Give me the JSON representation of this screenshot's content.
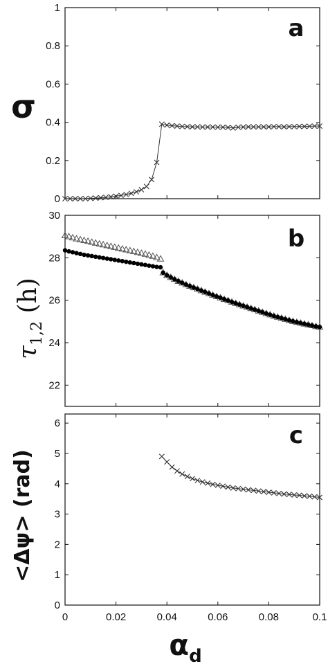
{
  "figure": {
    "xlabel_main": "α",
    "xlabel_sub": "d",
    "xticks": [
      "0",
      "0.02",
      "0.04",
      "0.06",
      "0.08",
      "0.1"
    ]
  },
  "panel_a": {
    "letter": "a",
    "ylabel": "σ",
    "yticks": [
      "0",
      "0.2",
      "0.4",
      "0.6",
      "0.8",
      "1"
    ]
  },
  "panel_b": {
    "letter": "b",
    "ylabel_main": "τ",
    "ylabel_sub": "1,2",
    "ylabel_unit": " (h)",
    "yticks": [
      "22",
      "24",
      "26",
      "28",
      "30"
    ]
  },
  "panel_c": {
    "letter": "c",
    "ylabel": "<Δψ> (rad)",
    "yticks": [
      "0",
      "1",
      "2",
      "3",
      "4",
      "5",
      "6"
    ]
  },
  "chart_data": [
    {
      "type": "line",
      "panel": "a",
      "xlim": [
        0,
        0.1
      ],
      "ylim": [
        0,
        1
      ],
      "series": [
        {
          "marker": "x",
          "x": [
            0,
            0.002,
            0.004,
            0.006,
            0.008,
            0.01,
            0.012,
            0.014,
            0.016,
            0.018,
            0.02,
            0.022,
            0.024,
            0.026,
            0.028,
            0.03,
            0.032,
            0.034,
            0.036,
            0.038,
            0.04,
            0.042,
            0.044,
            0.046,
            0.048,
            0.05,
            0.052,
            0.054,
            0.056,
            0.058,
            0.06,
            0.062,
            0.064,
            0.066,
            0.068,
            0.07,
            0.072,
            0.074,
            0.076,
            0.078,
            0.08,
            0.082,
            0.084,
            0.086,
            0.088,
            0.09,
            0.092,
            0.094,
            0.096,
            0.098,
            0.1
          ],
          "y": [
            0.0,
            0.0,
            0.0,
            0.0,
            0.0,
            0.002,
            0.003,
            0.005,
            0.007,
            0.01,
            0.013,
            0.017,
            0.022,
            0.028,
            0.036,
            0.047,
            0.064,
            0.1,
            0.19,
            0.39,
            0.385,
            0.382,
            0.38,
            0.378,
            0.377,
            0.376,
            0.376,
            0.375,
            0.375,
            0.375,
            0.374,
            0.374,
            0.373,
            0.37,
            0.374,
            0.375,
            0.376,
            0.376,
            0.376,
            0.376,
            0.376,
            0.377,
            0.377,
            0.376,
            0.377,
            0.377,
            0.378,
            0.378,
            0.379,
            0.38,
            0.38
          ]
        }
      ]
    },
    {
      "type": "line",
      "panel": "b",
      "xlim": [
        0,
        0.1
      ],
      "ylim": [
        21,
        30
      ],
      "series": [
        {
          "marker": "triangle",
          "x": [
            0,
            0.0015,
            0.003,
            0.0045,
            0.006,
            0.0075,
            0.009,
            0.0105,
            0.012,
            0.0135,
            0.015,
            0.0165,
            0.018,
            0.0195,
            0.021,
            0.0225,
            0.024,
            0.0255,
            0.027,
            0.0285,
            0.03,
            0.0315,
            0.033,
            0.0345,
            0.036,
            0.0375
          ],
          "y": [
            29.05,
            29.0,
            28.95,
            28.9,
            28.86,
            28.82,
            28.78,
            28.74,
            28.7,
            28.66,
            28.62,
            28.58,
            28.54,
            28.5,
            28.46,
            28.42,
            28.38,
            28.34,
            28.3,
            28.26,
            28.22,
            28.18,
            28.13,
            28.08,
            28.02,
            27.95
          ]
        },
        {
          "marker": "dot",
          "x": [
            0,
            0.0015,
            0.003,
            0.0045,
            0.006,
            0.0075,
            0.009,
            0.0105,
            0.012,
            0.0135,
            0.015,
            0.0165,
            0.018,
            0.0195,
            0.021,
            0.0225,
            0.024,
            0.0255,
            0.027,
            0.0285,
            0.03,
            0.0315,
            0.033,
            0.0345,
            0.036,
            0.0375
          ],
          "y": [
            28.35,
            28.3,
            28.26,
            28.22,
            28.18,
            28.14,
            28.11,
            28.08,
            28.05,
            28.02,
            27.99,
            27.96,
            27.93,
            27.9,
            27.87,
            27.84,
            27.81,
            27.78,
            27.75,
            27.72,
            27.69,
            27.66,
            27.63,
            27.6,
            27.57,
            27.55
          ]
        },
        {
          "marker": "triangle",
          "x": [
            0.0385,
            0.04,
            0.0415,
            0.043,
            0.0445,
            0.046,
            0.0475,
            0.049,
            0.0505,
            0.052,
            0.0535,
            0.055,
            0.0565,
            0.058,
            0.0595,
            0.061,
            0.0625,
            0.064,
            0.0655,
            0.067,
            0.0685,
            0.07,
            0.0715,
            0.073,
            0.0745,
            0.076,
            0.0775,
            0.079,
            0.0805,
            0.082,
            0.0835,
            0.085,
            0.0865,
            0.088,
            0.0895,
            0.091,
            0.0925,
            0.094,
            0.0955,
            0.097,
            0.0985,
            0.1
          ],
          "y": [
            27.3,
            27.18,
            27.08,
            26.99,
            26.9,
            26.82,
            26.74,
            26.67,
            26.6,
            26.53,
            26.46,
            26.39,
            26.32,
            26.25,
            26.18,
            26.12,
            26.05,
            25.99,
            25.92,
            25.86,
            25.8,
            25.74,
            25.68,
            25.62,
            25.56,
            25.5,
            25.44,
            25.38,
            25.32,
            25.26,
            25.21,
            25.16,
            25.11,
            25.06,
            25.01,
            24.97,
            24.93,
            24.89,
            24.85,
            24.81,
            24.77,
            24.74
          ]
        },
        {
          "marker": "dot",
          "x": [
            0.0385,
            0.04,
            0.0415,
            0.043,
            0.0445,
            0.046,
            0.0475,
            0.049,
            0.0505,
            0.052,
            0.0535,
            0.055,
            0.0565,
            0.058,
            0.0595,
            0.061,
            0.0625,
            0.064,
            0.0655,
            0.067,
            0.0685,
            0.07,
            0.0715,
            0.073,
            0.0745,
            0.076,
            0.0775,
            0.079,
            0.0805,
            0.082,
            0.0835,
            0.085,
            0.0865,
            0.088,
            0.0895,
            0.091,
            0.0925,
            0.094,
            0.0955,
            0.097,
            0.0985,
            0.1
          ],
          "y": [
            27.3,
            27.18,
            27.08,
            26.99,
            26.9,
            26.82,
            26.74,
            26.67,
            26.6,
            26.53,
            26.46,
            26.39,
            26.32,
            26.25,
            26.18,
            26.12,
            26.05,
            25.99,
            25.92,
            25.86,
            25.8,
            25.74,
            25.68,
            25.62,
            25.56,
            25.5,
            25.44,
            25.38,
            25.32,
            25.26,
            25.21,
            25.16,
            25.11,
            25.06,
            25.01,
            24.97,
            24.93,
            24.89,
            24.85,
            24.81,
            24.77,
            24.74
          ]
        }
      ]
    },
    {
      "type": "line",
      "panel": "c",
      "xlim": [
        0,
        0.1
      ],
      "ylim": [
        0,
        6.3
      ],
      "series": [
        {
          "marker": "x",
          "x": [
            0.038,
            0.04,
            0.042,
            0.044,
            0.046,
            0.048,
            0.05,
            0.052,
            0.054,
            0.056,
            0.058,
            0.06,
            0.062,
            0.064,
            0.066,
            0.068,
            0.07,
            0.072,
            0.074,
            0.076,
            0.078,
            0.08,
            0.082,
            0.084,
            0.086,
            0.088,
            0.09,
            0.092,
            0.094,
            0.096,
            0.098,
            0.1
          ],
          "y": [
            4.9,
            4.72,
            4.55,
            4.42,
            4.32,
            4.24,
            4.17,
            4.11,
            4.06,
            4.02,
            3.98,
            3.95,
            3.92,
            3.89,
            3.86,
            3.84,
            3.82,
            3.8,
            3.78,
            3.76,
            3.74,
            3.72,
            3.7,
            3.68,
            3.66,
            3.65,
            3.63,
            3.62,
            3.6,
            3.59,
            3.57,
            3.55
          ]
        }
      ]
    }
  ]
}
